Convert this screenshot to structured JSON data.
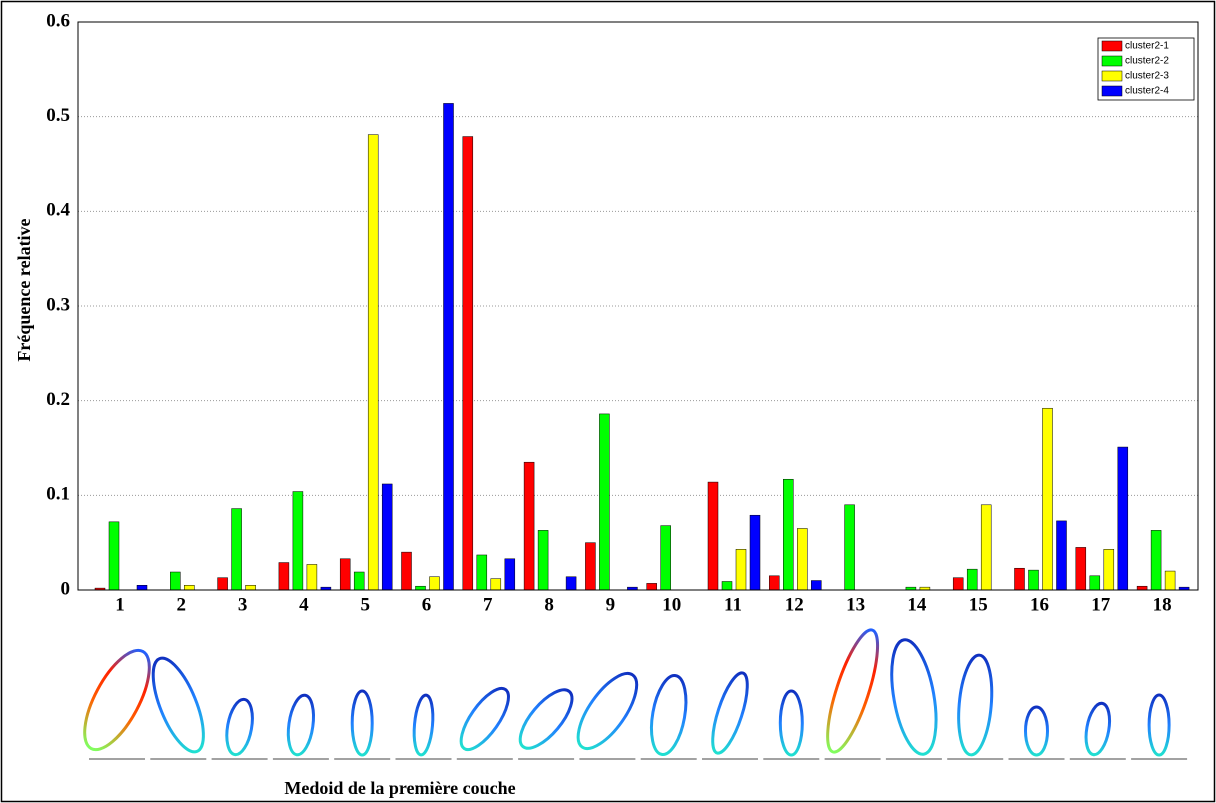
{
  "chart_data": {
    "type": "bar",
    "x_label": "Medoid de la première couche",
    "y_label": "Fréquence relative",
    "categories": [
      "1",
      "2",
      "3",
      "4",
      "5",
      "6",
      "7",
      "8",
      "9",
      "10",
      "11",
      "12",
      "13",
      "14",
      "15",
      "16",
      "17",
      "18"
    ],
    "series": [
      {
        "name": "cluster2-1",
        "color": "#ff0000",
        "values": [
          0.002,
          0,
          0.013,
          0.029,
          0.033,
          0.04,
          0.479,
          0.135,
          0.05,
          0.007,
          0.114,
          0.015,
          0,
          0,
          0.013,
          0.023,
          0.045,
          0.004
        ]
      },
      {
        "name": "cluster2-2",
        "color": "#00ff00",
        "values": [
          0.072,
          0.019,
          0.086,
          0.104,
          0.019,
          0.004,
          0.037,
          0.063,
          0.186,
          0.068,
          0.009,
          0.117,
          0.09,
          0.003,
          0.022,
          0.021,
          0.015,
          0.063
        ]
      },
      {
        "name": "cluster2-3",
        "color": "#ffff00",
        "values": [
          0,
          0.005,
          0.005,
          0.027,
          0.481,
          0.014,
          0.012,
          0,
          0,
          0,
          0.043,
          0.065,
          0,
          0.003,
          0.09,
          0.192,
          0.043,
          0.02
        ]
      },
      {
        "name": "cluster2-4",
        "color": "#0000ff",
        "values": [
          0.005,
          0,
          0,
          0.003,
          0.112,
          0.514,
          0.033,
          0.014,
          0.003,
          0,
          0.079,
          0.01,
          0,
          0,
          0,
          0.073,
          0.151,
          0.003
        ]
      }
    ],
    "ylim": [
      0,
      0.6
    ],
    "yticks": [
      0,
      0.1,
      0.2,
      0.3,
      0.4,
      0.5,
      0.6
    ],
    "grid": true,
    "legend": "upper right"
  }
}
